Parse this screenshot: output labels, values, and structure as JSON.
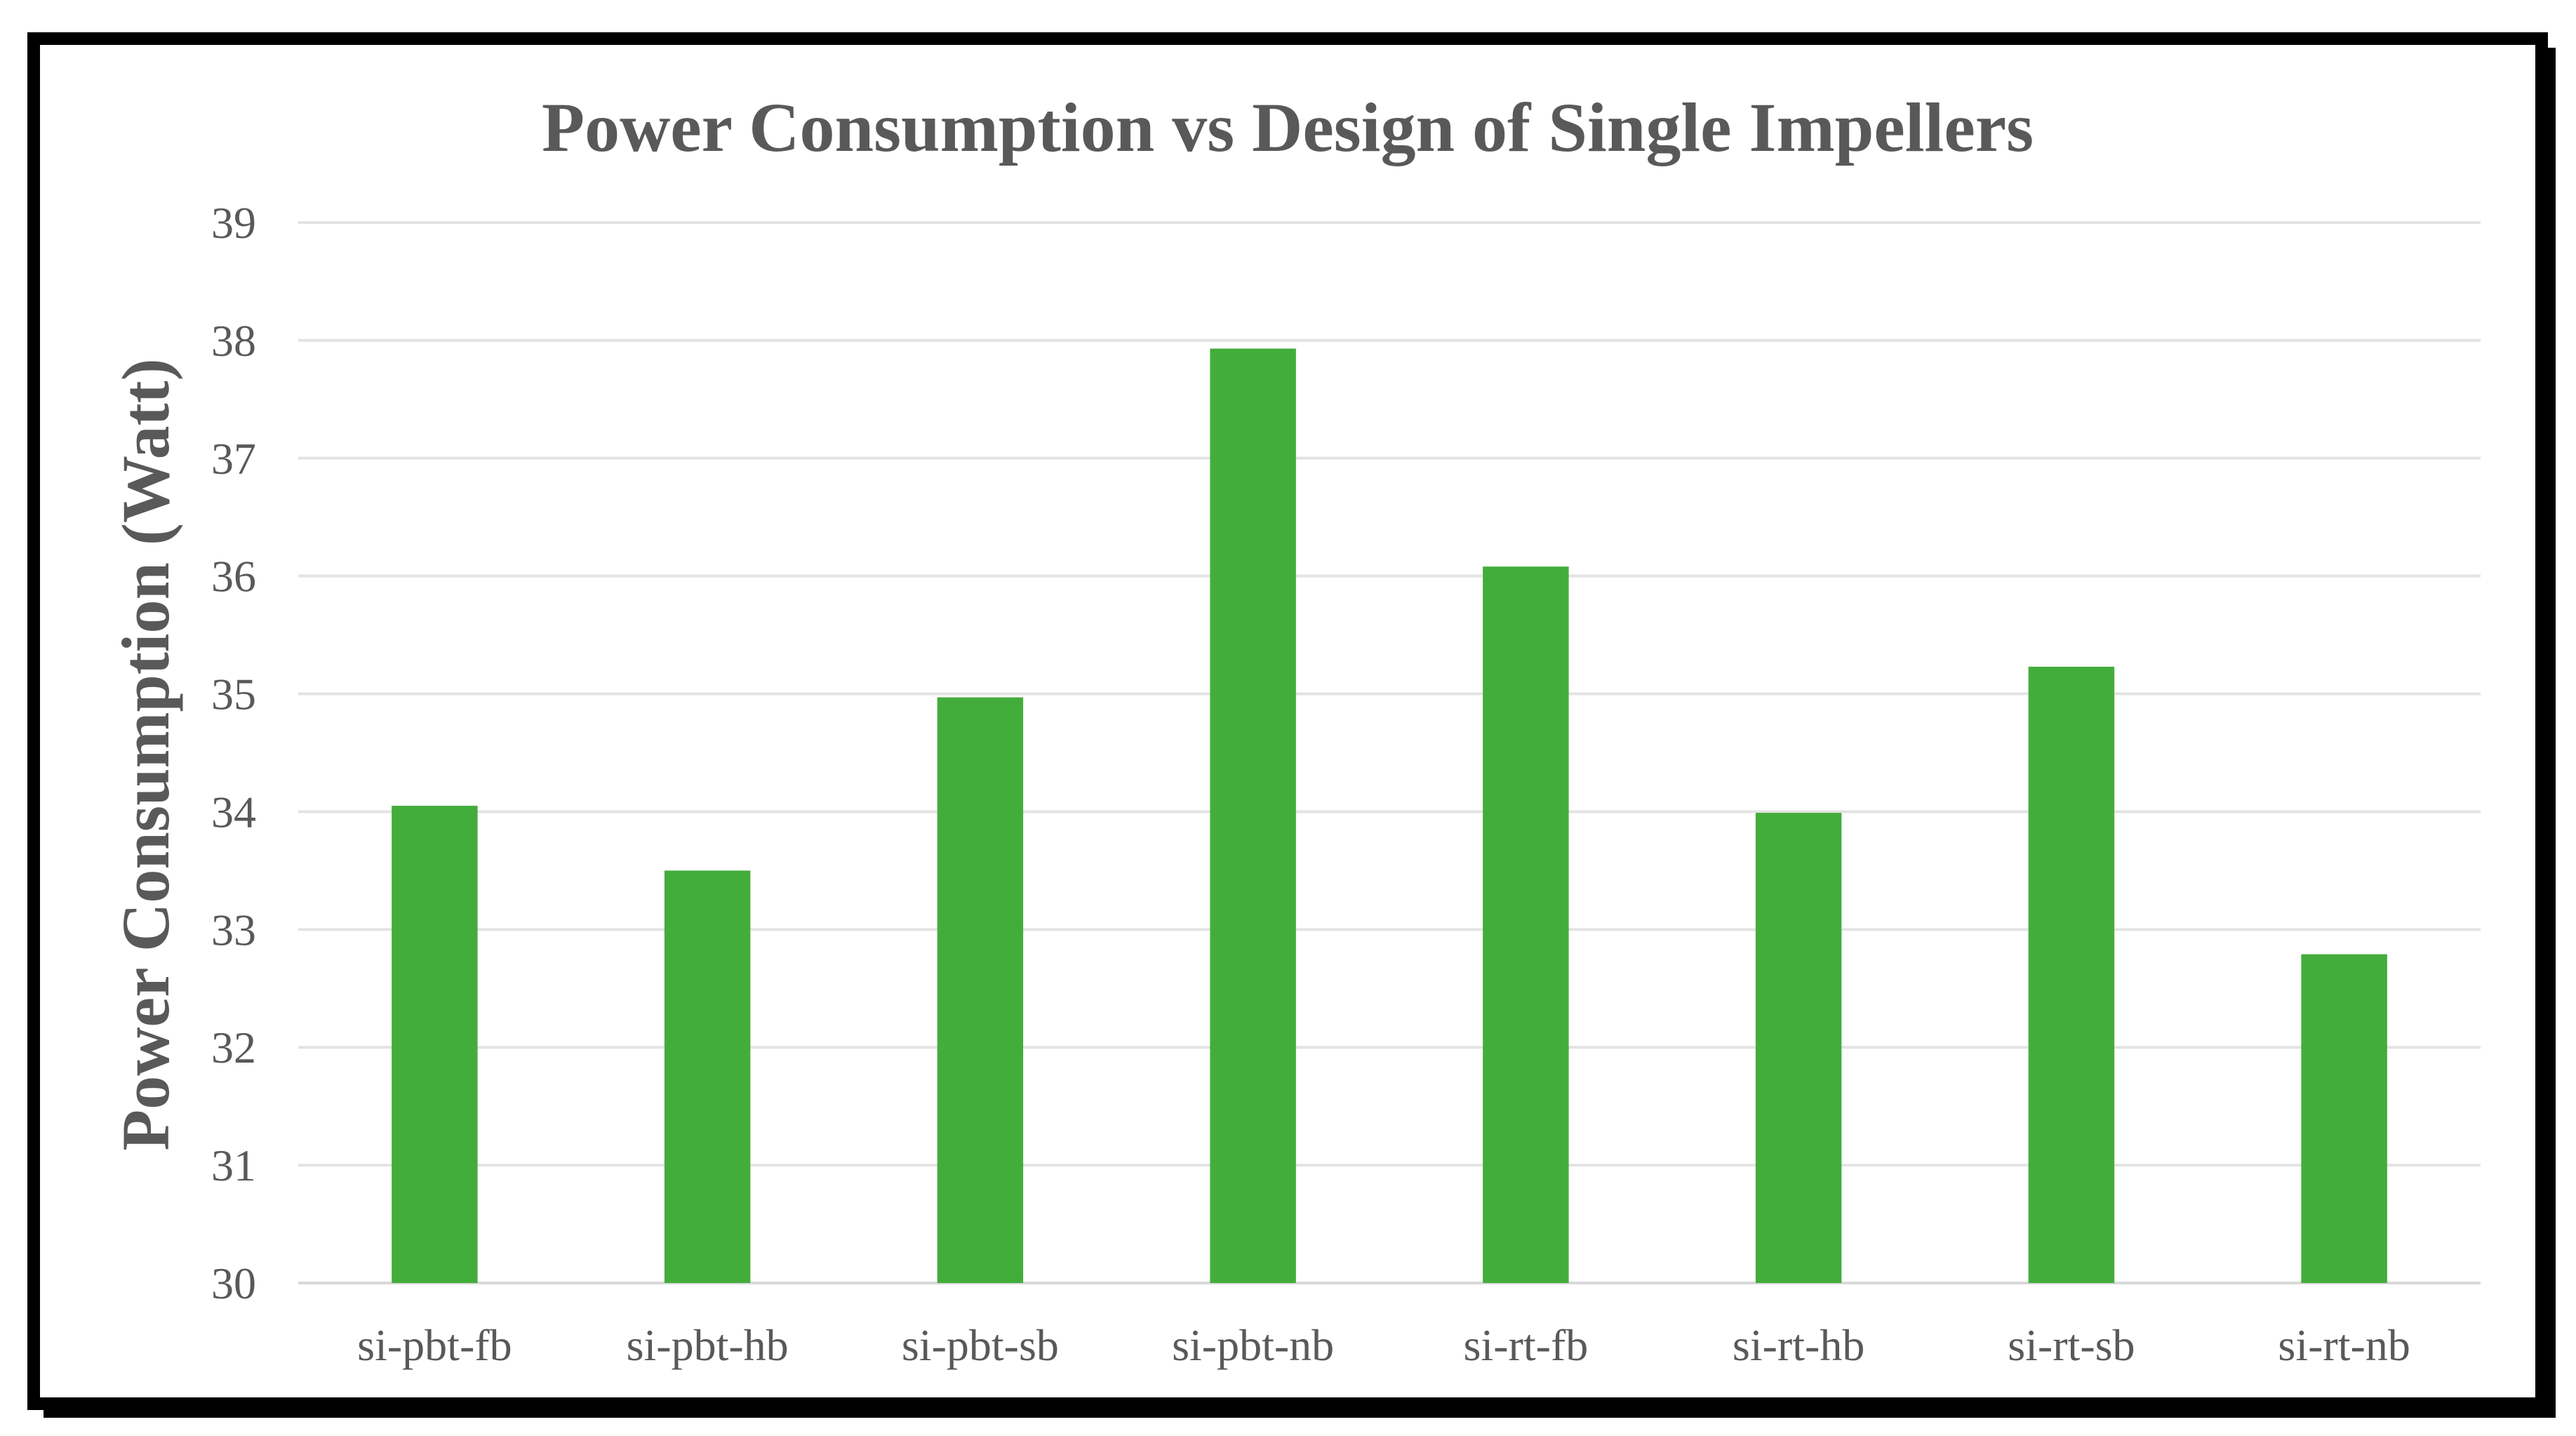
{
  "chart_data": {
    "type": "bar",
    "title": "Power Consumption vs Design of Single Impellers",
    "xlabel": "",
    "ylabel": "Power Consumption (Watt)",
    "categories": [
      "si-pbt-fb",
      "si-pbt-hb",
      "si-pbt-sb",
      "si-pbt-nb",
      "si-rt-fb",
      "si-rt-hb",
      "si-rt-sb",
      "si-rt-nb"
    ],
    "values": [
      34.05,
      33.5,
      34.97,
      37.93,
      36.08,
      33.99,
      35.23,
      32.79
    ],
    "ylim": [
      30,
      39
    ],
    "yticks": [
      30,
      31,
      32,
      33,
      34,
      35,
      36,
      37,
      38,
      39
    ],
    "grid": true,
    "legend": "none",
    "colors": {
      "bar": "#43AD3B",
      "frame": "#000000",
      "text": "#595959"
    }
  }
}
